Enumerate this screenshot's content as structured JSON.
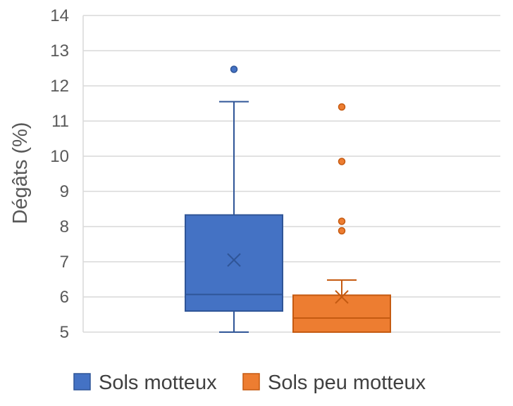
{
  "chart_data": {
    "type": "box",
    "title": "",
    "xlabel": "",
    "ylabel": "Dégâts (%)",
    "ylim": [
      5,
      14
    ],
    "yticks": [
      5,
      6,
      7,
      8,
      9,
      10,
      11,
      12,
      13,
      14
    ],
    "grid": true,
    "legend_position": "bottom",
    "series": [
      {
        "name": "Sols motteux",
        "color": "#4472C4",
        "stroke": "#2F5597",
        "min": 5.0,
        "q1": 5.6,
        "median": 6.07,
        "q3": 8.33,
        "max": 11.55,
        "mean": 7.05,
        "outliers": [
          12.47
        ]
      },
      {
        "name": "Sols peu motteux",
        "color": "#ED7D31",
        "stroke": "#C55A11",
        "min": 5.0,
        "q1": 5.0,
        "median": 5.4,
        "q3": 6.05,
        "max": 6.48,
        "mean": 6.0,
        "outliers": [
          7.88,
          8.15,
          9.85,
          11.4
        ]
      }
    ]
  }
}
